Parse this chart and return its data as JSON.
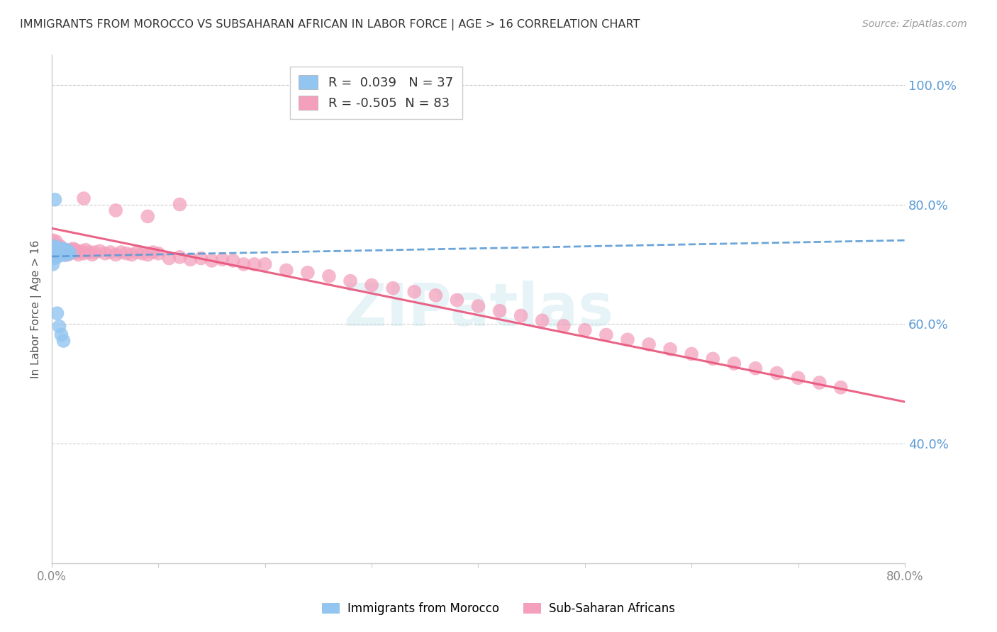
{
  "title": "IMMIGRANTS FROM MOROCCO VS SUBSAHARAN AFRICAN IN LABOR FORCE | AGE > 16 CORRELATION CHART",
  "source": "Source: ZipAtlas.com",
  "ylabel": "In Labor Force | Age > 16",
  "watermark": "ZIPatlas",
  "xmin": 0.0,
  "xmax": 0.8,
  "ymin": 0.2,
  "ymax": 1.05,
  "ytick_right": [
    0.4,
    0.6,
    0.8,
    1.0
  ],
  "ytick_right_labels": [
    "40.0%",
    "60.0%",
    "80.0%",
    "100.0%"
  ],
  "morocco_R": 0.039,
  "morocco_N": 37,
  "subsaharan_R": -0.505,
  "subsaharan_N": 83,
  "morocco_color": "#92C5F0",
  "subsaharan_color": "#F4A0BC",
  "morocco_line_color": "#5B9BD5",
  "subsaharan_line_color": "#E8537A",
  "grid_color": "#C8C8C8",
  "background_color": "#FFFFFF",
  "title_color": "#333333",
  "right_axis_color": "#5B9BD5",
  "morocco_x": [
    0.001,
    0.002,
    0.002,
    0.003,
    0.003,
    0.003,
    0.004,
    0.004,
    0.004,
    0.005,
    0.005,
    0.005,
    0.006,
    0.006,
    0.007,
    0.007,
    0.007,
    0.008,
    0.008,
    0.008,
    0.009,
    0.009,
    0.01,
    0.01,
    0.01,
    0.011,
    0.012,
    0.013,
    0.014,
    0.015,
    0.016,
    0.017,
    0.003,
    0.005,
    0.007,
    0.009,
    0.011
  ],
  "morocco_y": [
    0.7,
    0.71,
    0.72,
    0.718,
    0.725,
    0.73,
    0.715,
    0.722,
    0.728,
    0.712,
    0.72,
    0.726,
    0.718,
    0.724,
    0.716,
    0.72,
    0.724,
    0.718,
    0.722,
    0.726,
    0.72,
    0.724,
    0.718,
    0.722,
    0.726,
    0.72,
    0.715,
    0.72,
    0.724,
    0.722,
    0.72,
    0.718,
    0.808,
    0.618,
    0.596,
    0.582,
    0.572
  ],
  "subsaharan_x": [
    0.001,
    0.002,
    0.003,
    0.004,
    0.005,
    0.006,
    0.007,
    0.008,
    0.009,
    0.01,
    0.011,
    0.012,
    0.013,
    0.014,
    0.015,
    0.016,
    0.017,
    0.018,
    0.019,
    0.02,
    0.021,
    0.022,
    0.024,
    0.025,
    0.028,
    0.03,
    0.032,
    0.035,
    0.038,
    0.04,
    0.045,
    0.05,
    0.055,
    0.06,
    0.065,
    0.07,
    0.075,
    0.08,
    0.085,
    0.09,
    0.095,
    0.1,
    0.11,
    0.12,
    0.13,
    0.14,
    0.15,
    0.16,
    0.17,
    0.18,
    0.19,
    0.2,
    0.22,
    0.24,
    0.26,
    0.28,
    0.3,
    0.32,
    0.34,
    0.36,
    0.38,
    0.4,
    0.42,
    0.44,
    0.46,
    0.48,
    0.5,
    0.52,
    0.54,
    0.56,
    0.58,
    0.6,
    0.62,
    0.64,
    0.66,
    0.68,
    0.7,
    0.72,
    0.74,
    0.03,
    0.06,
    0.09,
    0.12
  ],
  "subsaharan_y": [
    0.74,
    0.73,
    0.72,
    0.738,
    0.73,
    0.725,
    0.72,
    0.73,
    0.718,
    0.726,
    0.722,
    0.718,
    0.724,
    0.72,
    0.716,
    0.722,
    0.718,
    0.724,
    0.72,
    0.726,
    0.72,
    0.724,
    0.72,
    0.716,
    0.722,
    0.718,
    0.724,
    0.72,
    0.716,
    0.72,
    0.722,
    0.718,
    0.72,
    0.716,
    0.72,
    0.718,
    0.716,
    0.72,
    0.718,
    0.716,
    0.72,
    0.718,
    0.71,
    0.712,
    0.708,
    0.71,
    0.706,
    0.708,
    0.706,
    0.7,
    0.7,
    0.7,
    0.69,
    0.686,
    0.68,
    0.672,
    0.665,
    0.66,
    0.654,
    0.648,
    0.64,
    0.63,
    0.622,
    0.614,
    0.606,
    0.597,
    0.59,
    0.582,
    0.574,
    0.566,
    0.558,
    0.55,
    0.542,
    0.534,
    0.526,
    0.518,
    0.51,
    0.502,
    0.494,
    0.81,
    0.79,
    0.78,
    0.8
  ],
  "morocco_trend_x": [
    0.0,
    0.8
  ],
  "morocco_trend_y": [
    0.713,
    0.74
  ],
  "subsaharan_trend_x": [
    0.0,
    0.8
  ],
  "subsaharan_trend_y": [
    0.76,
    0.47
  ]
}
